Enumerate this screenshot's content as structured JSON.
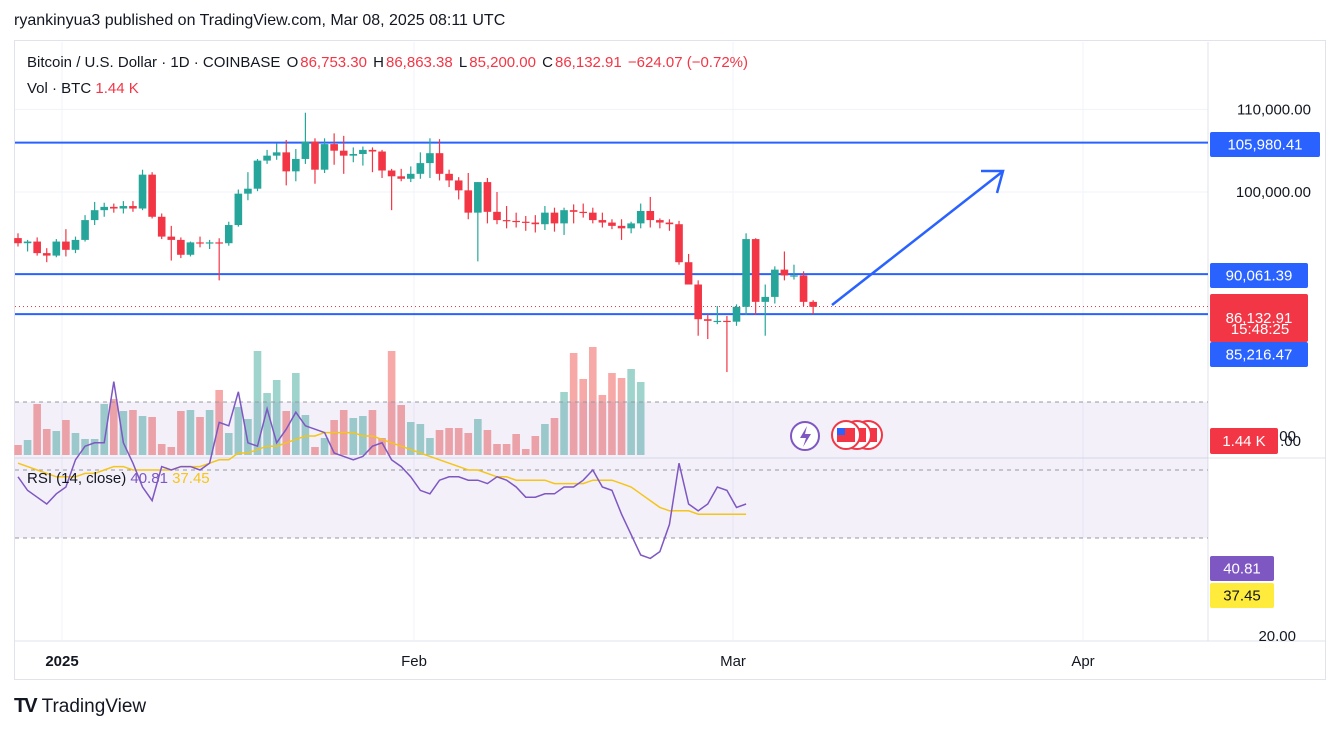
{
  "header": {
    "publish_line": "ryankinyua3 published on TradingView.com, Mar 08, 2025 08:11 UTC"
  },
  "legend": {
    "symbol": "Bitcoin / U.S. Dollar · 1D · COINBASE",
    "open_label": "O",
    "open": "86,753.30",
    "high_label": "H",
    "high": "86,863.38",
    "low_label": "L",
    "low": "85,200.00",
    "close_label": "C",
    "close": "86,132.91",
    "change": "−624.07 (−0.72%)",
    "vol_label": "Vol · BTC",
    "vol_value": "1.44 K"
  },
  "rsi_legend": {
    "label": "RSI (14, close)",
    "rsi": "40.81",
    "ma": "37.45"
  },
  "footer": {
    "brand": "TradingView"
  },
  "colors": {
    "up": "#26a69a",
    "down": "#f23645",
    "level": "#2962ff",
    "rsi": "#7e57c2",
    "rsi_ma": "#f5c518",
    "vol_up": "#9fd4cd",
    "vol_down": "#f7a9a7"
  },
  "chart_data": {
    "type": "candlestick",
    "price_axis": {
      "ticks": [
        "110,000.00",
        "100,000.00"
      ],
      "tick_values": [
        110000,
        100000
      ]
    },
    "levels": [
      {
        "value": 105980.41,
        "label": "105,980.41"
      },
      {
        "value": 90061.39,
        "label": "90,061.39"
      },
      {
        "value": 85216.47,
        "label": "85,216.47"
      }
    ],
    "last_price": {
      "label": "86,132.91",
      "countdown": "15:48:25"
    },
    "volume_label": "1.44 K",
    "volume_axis_fragment": ".00",
    "time_axis": [
      "2025",
      "Feb",
      "Mar",
      "Apr"
    ],
    "rsi_axis": [
      "60.00",
      "20.00"
    ],
    "rsi_badges": {
      "rsi": "40.81",
      "ma": "37.45"
    },
    "candles": [
      [
        94420,
        95000,
        93400,
        93800
      ],
      [
        93800,
        94200,
        92800,
        94000
      ],
      [
        94000,
        94500,
        92300,
        92600
      ],
      [
        92600,
        93200,
        91500,
        92300
      ],
      [
        92300,
        94300,
        92100,
        94000
      ],
      [
        94000,
        95500,
        92200,
        93000
      ],
      [
        93000,
        94600,
        92600,
        94200
      ],
      [
        94200,
        97200,
        94000,
        96600
      ],
      [
        96600,
        98800,
        96000,
        97800
      ],
      [
        97800,
        98700,
        97000,
        98200
      ],
      [
        98200,
        98600,
        97500,
        98000
      ],
      [
        98000,
        98900,
        97400,
        98300
      ],
      [
        98300,
        98900,
        97600,
        98000
      ],
      [
        98000,
        102700,
        97800,
        102100
      ],
      [
        102100,
        102400,
        96800,
        97000
      ],
      [
        97000,
        97400,
        94300,
        94600
      ],
      [
        94600,
        95900,
        91700,
        94200
      ],
      [
        94200,
        94500,
        92000,
        92400
      ],
      [
        92400,
        94000,
        92200,
        93900
      ],
      [
        93900,
        94600,
        93300,
        93800
      ],
      [
        93800,
        94200,
        93100,
        93900
      ],
      [
        93900,
        94400,
        89300,
        93800
      ],
      [
        93800,
        96400,
        93500,
        96000
      ],
      [
        96000,
        100300,
        95800,
        99800
      ],
      [
        99800,
        102400,
        99000,
        100400
      ],
      [
        100400,
        104000,
        100100,
        103800
      ],
      [
        103800,
        105100,
        103400,
        104400
      ],
      [
        104400,
        105900,
        103900,
        104800
      ],
      [
        104800,
        106300,
        100800,
        102500
      ],
      [
        102500,
        105200,
        101300,
        104000
      ],
      [
        104000,
        109600,
        103400,
        106100
      ],
      [
        106100,
        106500,
        101000,
        102700
      ],
      [
        102700,
        106500,
        102300,
        105800
      ],
      [
        105800,
        107100,
        103300,
        105000
      ],
      [
        105000,
        106800,
        102200,
        104400
      ],
      [
        104400,
        105400,
        103600,
        104600
      ],
      [
        104600,
        105500,
        103200,
        105100
      ],
      [
        105100,
        105400,
        102400,
        104900
      ],
      [
        104900,
        105100,
        101700,
        102600
      ],
      [
        102600,
        102800,
        97800,
        101900
      ],
      [
        101900,
        102800,
        101300,
        101600
      ],
      [
        101600,
        103100,
        101200,
        102200
      ],
      [
        102200,
        104800,
        101600,
        103500
      ],
      [
        103500,
        106500,
        101700,
        104700
      ],
      [
        104700,
        106400,
        101400,
        102200
      ],
      [
        102200,
        102700,
        100600,
        101400
      ],
      [
        101400,
        101800,
        99100,
        100200
      ],
      [
        100200,
        102300,
        96700,
        97500
      ],
      [
        97500,
        101200,
        91600,
        101200
      ],
      [
        101200,
        101700,
        96200,
        97600
      ],
      [
        97600,
        100000,
        96100,
        96600
      ],
      [
        96600,
        98300,
        95600,
        96500
      ],
      [
        96500,
        97500,
        95700,
        96400
      ],
      [
        96400,
        97100,
        95300,
        96300
      ],
      [
        96300,
        97200,
        95100,
        96100
      ],
      [
        96100,
        98300,
        95400,
        97500
      ],
      [
        97500,
        98100,
        95200,
        96200
      ],
      [
        96200,
        98100,
        94800,
        97800
      ],
      [
        97800,
        98500,
        96200,
        97600
      ],
      [
        97600,
        98600,
        96900,
        97500
      ],
      [
        97500,
        98100,
        96200,
        96600
      ],
      [
        96600,
        97500,
        95700,
        96300
      ],
      [
        96300,
        96700,
        95500,
        95900
      ],
      [
        95900,
        96700,
        94200,
        95600
      ],
      [
        95600,
        96400,
        95000,
        96200
      ],
      [
        96200,
        98600,
        95600,
        97700
      ],
      [
        97700,
        99400,
        95700,
        96600
      ],
      [
        96600,
        96800,
        95600,
        96300
      ],
      [
        96300,
        96700,
        95300,
        96100
      ],
      [
        96100,
        96500,
        91200,
        91500
      ],
      [
        91500,
        92500,
        88800,
        88800
      ],
      [
        88800,
        89300,
        82600,
        84600
      ],
      [
        84600,
        85200,
        82200,
        84400
      ],
      [
        84400,
        86200,
        84000,
        84400
      ],
      [
        84400,
        85000,
        78200,
        84300
      ],
      [
        84300,
        86400,
        83800,
        86100
      ],
      [
        86100,
        95000,
        85100,
        94300
      ],
      [
        94300,
        94400,
        85100,
        86700
      ],
      [
        86700,
        88800,
        82600,
        87300
      ],
      [
        87300,
        91000,
        86500,
        90600
      ],
      [
        90600,
        92800,
        89300,
        89900
      ],
      [
        89900,
        91200,
        89400,
        89900
      ],
      [
        89900,
        90400,
        86200,
        86700
      ],
      [
        86700,
        86900,
        85200,
        86100
      ]
    ],
    "volume_heights": [
      10,
      15,
      51,
      26,
      24,
      35,
      22,
      16,
      16,
      51,
      56,
      44,
      45,
      39,
      38,
      11,
      8,
      44,
      45,
      38,
      45,
      65,
      22,
      48,
      36,
      104,
      62,
      75,
      44,
      82,
      40,
      8,
      17,
      35,
      45,
      37,
      39,
      45,
      17,
      104,
      50,
      33,
      31,
      17,
      25,
      27,
      27,
      22,
      36,
      25,
      11,
      11,
      21,
      6,
      19,
      31,
      37,
      63,
      102,
      76,
      108,
      60,
      82,
      77,
      86,
      73
    ],
    "rsi": [
      48,
      44,
      42,
      40,
      43,
      45,
      53,
      57,
      58,
      58,
      76,
      58,
      52,
      45,
      41,
      51,
      50,
      51,
      51,
      50,
      52,
      64,
      63,
      73,
      58,
      57,
      68,
      58,
      62,
      67,
      63,
      62,
      61,
      55,
      54,
      53,
      54,
      57,
      58,
      53,
      51,
      48,
      44,
      43,
      47,
      48,
      48,
      47,
      47,
      46,
      48,
      47,
      45,
      42,
      42,
      43,
      43,
      45,
      45,
      47,
      50,
      45,
      44,
      37,
      31,
      25,
      24,
      26,
      34,
      52,
      40,
      38,
      40,
      45,
      44,
      39,
      40
    ],
    "rsi_ma": [
      52,
      51,
      50,
      49,
      48,
      48,
      48,
      49,
      49,
      50,
      51,
      51,
      50,
      50,
      50,
      50,
      50,
      51,
      51,
      51,
      52,
      53,
      53,
      55,
      55,
      56,
      57,
      57,
      58,
      59,
      60,
      60,
      61,
      61,
      61,
      61,
      60,
      60,
      59,
      58,
      57,
      56,
      55,
      54,
      53,
      52,
      51,
      50,
      50,
      49,
      48,
      48,
      47,
      47,
      47,
      47,
      46,
      46,
      46,
      46,
      47,
      47,
      47,
      46,
      45,
      43,
      41,
      39,
      38,
      38,
      38,
      37,
      37,
      37,
      37,
      37,
      37
    ]
  }
}
